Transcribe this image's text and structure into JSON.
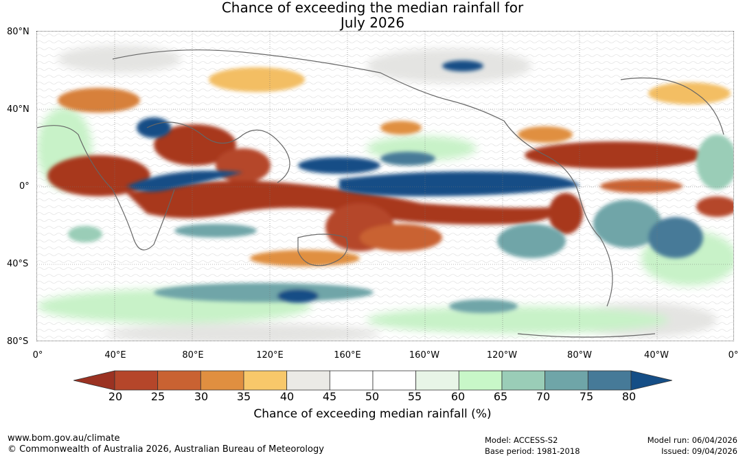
{
  "title": {
    "line1": "Chance of exceeding the median rainfall for",
    "line2": "July 2026"
  },
  "map": {
    "lat_labels": [
      "80°N",
      "40°N",
      "0°",
      "40°S",
      "80°S"
    ],
    "lon_labels": [
      "0°",
      "40°E",
      "80°E",
      "120°E",
      "160°E",
      "160°W",
      "120°W",
      "80°W",
      "40°W",
      "0°"
    ]
  },
  "colorbar": {
    "ticks": [
      "20",
      "25",
      "30",
      "35",
      "40",
      "45",
      "50",
      "55",
      "60",
      "65",
      "70",
      "75",
      "80"
    ],
    "colors": [
      "#9b3222",
      "#b5462a",
      "#c96232",
      "#e08f40",
      "#f8c86a",
      "#ebeae6",
      "#ffffff",
      "#ffffff",
      "#e8f5e7",
      "#c8f7c8",
      "#9acdb7",
      "#6fa5a8",
      "#467a98",
      "#154e86"
    ],
    "label": "Chance of exceeding median rainfall (%)"
  },
  "footer": {
    "website": "www.bom.gov.au/climate",
    "copyright": "© Commonwealth of Australia 2026, Australian Bureau of Meteorology",
    "model": "Model: ACCESS-S2",
    "base_period": "Base period: 1981-2018",
    "model_run": "Model run: 06/04/2026",
    "issued": "Issued: 09/04/2026"
  }
}
